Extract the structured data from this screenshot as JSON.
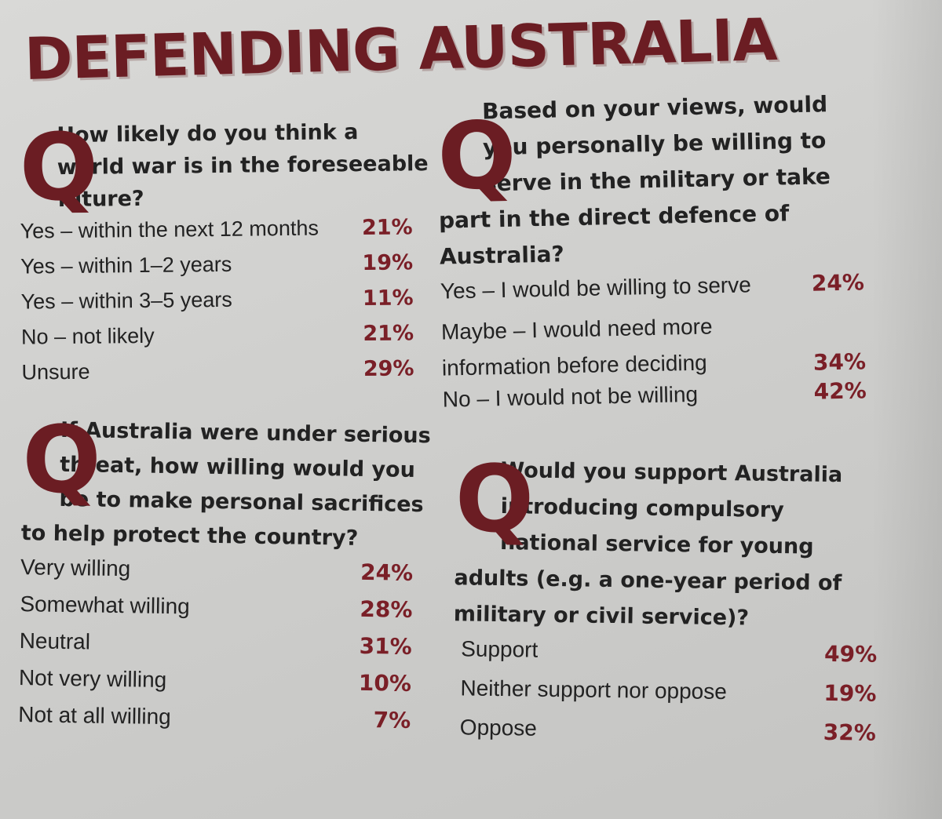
{
  "title": "DEFENDING AUSTRALIA",
  "questions": [
    {
      "letter": "Q",
      "lines": [
        "How likely do you think a",
        "world war is in the foreseeable",
        "future?"
      ],
      "options": [
        {
          "label": "Yes – within the next 12 months",
          "pct": "21%"
        },
        {
          "label": "Yes – within 1–2 years",
          "pct": "19%"
        },
        {
          "label": "Yes – within 3–5 years",
          "pct": "11%"
        },
        {
          "label": "No – not likely",
          "pct": "21%"
        },
        {
          "label": "Unsure",
          "pct": "29%"
        }
      ]
    },
    {
      "letter": "Q",
      "lines": [
        "Based on your views, would",
        "you personally be willing to",
        "serve in the military or take",
        "part in the direct defence of",
        "Australia?"
      ],
      "options": [
        {
          "label": "Yes – I would be willing to serve",
          "pct": "24%"
        },
        {
          "label": "Maybe – I would need more information before deciding",
          "pct": "34%"
        },
        {
          "label": "No – I would not be willing",
          "pct": "42%"
        }
      ]
    },
    {
      "letter": "Q",
      "lines": [
        "If Australia were under serious",
        "threat, how willing would you",
        "be to make personal sacrifices",
        "to help protect the country?"
      ],
      "options": [
        {
          "label": "Very willing",
          "pct": "24%"
        },
        {
          "label": "Somewhat willing",
          "pct": "28%"
        },
        {
          "label": "Neutral",
          "pct": "31%"
        },
        {
          "label": "Not very willing",
          "pct": "10%"
        },
        {
          "label": "Not at all willing",
          "pct": "7%"
        }
      ]
    },
    {
      "letter": "Q",
      "lines": [
        "Would you support Australia",
        "introducing compulsory",
        "national service for young",
        "adults (e.g. a one-year period of",
        "military or civil service)?"
      ],
      "options": [
        {
          "label": "Support",
          "pct": "49%"
        },
        {
          "label": "Neither support nor oppose",
          "pct": "19%"
        },
        {
          "label": "Oppose",
          "pct": "32%"
        }
      ]
    }
  ]
}
